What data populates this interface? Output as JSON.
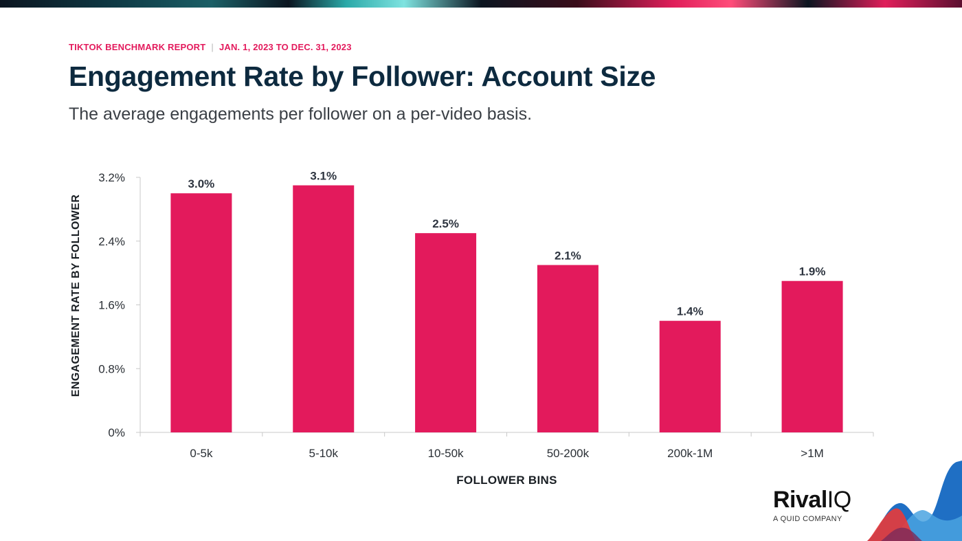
{
  "header": {
    "report_name": "TIKTOK BENCHMARK REPORT",
    "separator": "|",
    "date_range": "JAN. 1, 2023 TO DEC. 31, 2023",
    "title": "Engagement Rate by Follower: Account Size",
    "subtitle": "The average engagements per follower on a per-video basis."
  },
  "brand": {
    "name_part1": "Rival",
    "name_part2": "IQ",
    "tagline": "A QUID COMPANY"
  },
  "colors": {
    "bar": "#e31a5c",
    "accent": "#e31a5c",
    "title": "#0d2a3f"
  },
  "chart_data": {
    "type": "bar",
    "title": "",
    "xlabel": "FOLLOWER BINS",
    "ylabel": "ENGAGEMENT RATE BY FOLLOWER",
    "categories": [
      "0-5k",
      "5-10k",
      "10-50k",
      "50-200k",
      "200k-1M",
      ">1M"
    ],
    "values": [
      3.0,
      3.1,
      2.5,
      2.1,
      1.4,
      1.9
    ],
    "data_labels": [
      "3.0%",
      "3.1%",
      "2.5%",
      "2.1%",
      "1.4%",
      "1.9%"
    ],
    "yticks": [
      0,
      0.8,
      1.6,
      2.4,
      3.2
    ],
    "ytick_labels": [
      "0%",
      "0.8%",
      "1.6%",
      "2.4%",
      "3.2%"
    ],
    "ylim": [
      0,
      3.2
    ],
    "grid": false,
    "legend": "none"
  }
}
